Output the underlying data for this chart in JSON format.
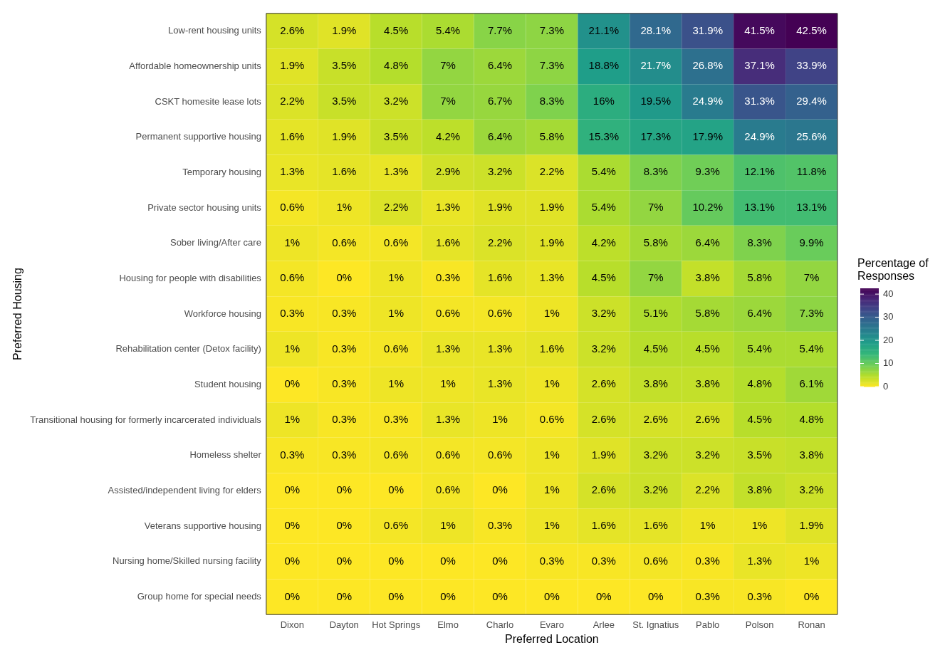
{
  "chart_data": {
    "type": "heatmap",
    "xlabel": "Preferred Location",
    "ylabel": "Preferred Housing",
    "clabel": "Percentage of Responses",
    "categories": [
      "Dixon",
      "Dayton",
      "Hot Springs",
      "Elmo",
      "Charlo",
      "Evaro",
      "Arlee",
      "St. Ignatius",
      "Pablo",
      "Polson",
      "Ronan"
    ],
    "y_categories": [
      "Low-rent housing units",
      "Affordable homeownership units",
      "CSKT homesite lease lots",
      "Permanent supportive housing",
      "Temporary housing",
      "Private sector housing units",
      "Sober living/After care",
      "Housing for people with disabilities",
      "Workforce housing",
      "Rehabilitation center (Detox facility)",
      "Student housing",
      "Transitional housing for formerly incarcerated individuals",
      "Homeless shelter",
      "Assisted/independent living for elders",
      "Veterans supportive housing",
      "Nursing home/Skilled nursing facility",
      "Group home for special needs"
    ],
    "cells": [
      [
        2.6,
        1.9,
        4.5,
        5.4,
        7.7,
        7.3,
        21.1,
        28.1,
        31.9,
        41.5,
        42.5
      ],
      [
        1.9,
        3.5,
        4.8,
        7,
        6.4,
        7.3,
        18.8,
        21.7,
        26.8,
        37.1,
        33.9
      ],
      [
        2.2,
        3.5,
        3.2,
        7,
        6.7,
        8.3,
        16,
        19.5,
        24.9,
        31.3,
        29.4
      ],
      [
        1.6,
        1.9,
        3.5,
        4.2,
        6.4,
        5.8,
        15.3,
        17.3,
        17.9,
        24.9,
        25.6
      ],
      [
        1.3,
        1.6,
        1.3,
        2.9,
        3.2,
        2.2,
        5.4,
        8.3,
        9.3,
        12.1,
        11.8
      ],
      [
        0.6,
        1,
        2.2,
        1.3,
        1.9,
        1.9,
        5.4,
        7,
        10.2,
        13.1,
        13.1
      ],
      [
        1,
        0.6,
        0.6,
        1.6,
        2.2,
        1.9,
        4.2,
        5.8,
        6.4,
        8.3,
        9.9
      ],
      [
        0.6,
        0,
        1,
        0.3,
        1.6,
        1.3,
        4.5,
        7,
        3.8,
        5.8,
        7
      ],
      [
        0.3,
        0.3,
        1,
        0.6,
        0.6,
        1,
        3.2,
        5.1,
        5.8,
        6.4,
        7.3
      ],
      [
        1,
        0.3,
        0.6,
        1.3,
        1.3,
        1.6,
        3.2,
        4.5,
        4.5,
        5.4,
        5.4
      ],
      [
        0,
        0.3,
        1,
        1,
        1.3,
        1,
        2.6,
        3.8,
        3.8,
        4.8,
        6.1
      ],
      [
        1,
        0.3,
        0.3,
        1.3,
        1,
        0.6,
        2.6,
        2.6,
        2.6,
        4.5,
        4.8
      ],
      [
        0.3,
        0.3,
        0.6,
        0.6,
        0.6,
        1,
        1.9,
        3.2,
        3.2,
        3.5,
        3.8
      ],
      [
        0,
        0,
        0,
        0.6,
        0,
        1,
        2.6,
        3.2,
        2.2,
        3.8,
        3.2
      ],
      [
        0,
        0,
        0.6,
        1,
        0.3,
        1,
        1.6,
        1.6,
        1,
        1,
        1.9
      ],
      [
        0,
        0,
        0,
        0,
        0,
        0.3,
        0.3,
        0.6,
        0.3,
        1.3,
        1
      ],
      [
        0,
        0,
        0,
        0,
        0,
        0,
        0,
        0,
        0.3,
        0.3,
        0
      ]
    ],
    "cell_labels": [
      [
        "2.6%",
        "1.9%",
        "4.5%",
        "5.4%",
        "7.7%",
        "7.3%",
        "21.1%",
        "28.1%",
        "31.9%",
        "41.5%",
        "42.5%"
      ],
      [
        "1.9%",
        "3.5%",
        "4.8%",
        "7%",
        "6.4%",
        "7.3%",
        "18.8%",
        "21.7%",
        "26.8%",
        "37.1%",
        "33.9%"
      ],
      [
        "2.2%",
        "3.5%",
        "3.2%",
        "7%",
        "6.7%",
        "8.3%",
        "16%",
        "19.5%",
        "24.9%",
        "31.3%",
        "29.4%"
      ],
      [
        "1.6%",
        "1.9%",
        "3.5%",
        "4.2%",
        "6.4%",
        "5.8%",
        "15.3%",
        "17.3%",
        "17.9%",
        "24.9%",
        "25.6%"
      ],
      [
        "1.3%",
        "1.6%",
        "1.3%",
        "2.9%",
        "3.2%",
        "2.2%",
        "5.4%",
        "8.3%",
        "9.3%",
        "12.1%",
        "11.8%"
      ],
      [
        "0.6%",
        "1%",
        "2.2%",
        "1.3%",
        "1.9%",
        "1.9%",
        "5.4%",
        "7%",
        "10.2%",
        "13.1%",
        "13.1%"
      ],
      [
        "1%",
        "0.6%",
        "0.6%",
        "1.6%",
        "2.2%",
        "1.9%",
        "4.2%",
        "5.8%",
        "6.4%",
        "8.3%",
        "9.9%"
      ],
      [
        "0.6%",
        "0%",
        "1%",
        "0.3%",
        "1.6%",
        "1.3%",
        "4.5%",
        "7%",
        "3.8%",
        "5.8%",
        "7%"
      ],
      [
        "0.3%",
        "0.3%",
        "1%",
        "0.6%",
        "0.6%",
        "1%",
        "3.2%",
        "5.1%",
        "5.8%",
        "6.4%",
        "7.3%"
      ],
      [
        "1%",
        "0.3%",
        "0.6%",
        "1.3%",
        "1.3%",
        "1.6%",
        "3.2%",
        "4.5%",
        "4.5%",
        "5.4%",
        "5.4%"
      ],
      [
        "0%",
        "0.3%",
        "1%",
        "1%",
        "1.3%",
        "1%",
        "2.6%",
        "3.8%",
        "3.8%",
        "4.8%",
        "6.1%"
      ],
      [
        "1%",
        "0.3%",
        "0.3%",
        "1.3%",
        "1%",
        "0.6%",
        "2.6%",
        "2.6%",
        "2.6%",
        "4.5%",
        "4.8%"
      ],
      [
        "0.3%",
        "0.3%",
        "0.6%",
        "0.6%",
        "0.6%",
        "1%",
        "1.9%",
        "3.2%",
        "3.2%",
        "3.5%",
        "3.8%"
      ],
      [
        "0%",
        "0%",
        "0%",
        "0.6%",
        "0%",
        "1%",
        "2.6%",
        "3.2%",
        "2.2%",
        "3.8%",
        "3.2%"
      ],
      [
        "0%",
        "0%",
        "0.6%",
        "1%",
        "0.3%",
        "1%",
        "1.6%",
        "1.6%",
        "1%",
        "1%",
        "1.9%"
      ],
      [
        "0%",
        "0%",
        "0%",
        "0%",
        "0%",
        "0.3%",
        "0.3%",
        "0.6%",
        "0.3%",
        "1.3%",
        "1%"
      ],
      [
        "0%",
        "0%",
        "0%",
        "0%",
        "0%",
        "0%",
        "0%",
        "0%",
        "0.3%",
        "0.3%",
        "0%"
      ]
    ],
    "clim": [
      0,
      42.5
    ],
    "cticks": [
      0,
      10,
      20,
      30,
      40
    ]
  }
}
